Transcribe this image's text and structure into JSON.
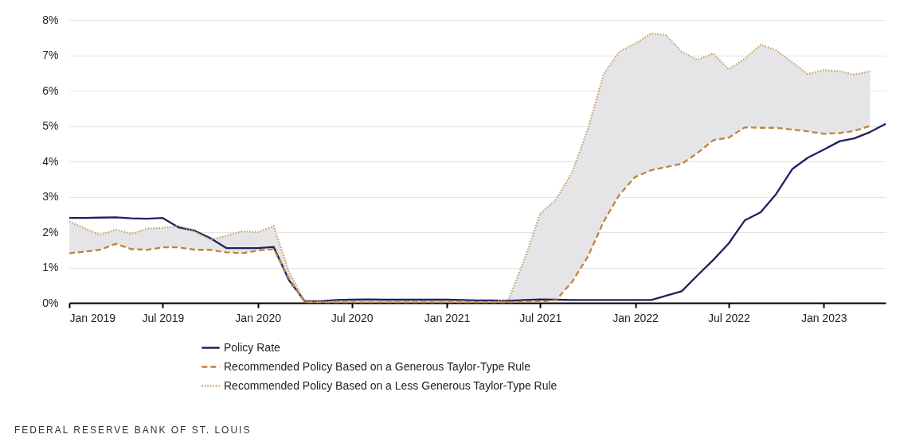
{
  "chart_data": {
    "type": "line",
    "x": [
      "2019-01",
      "2019-02",
      "2019-03",
      "2019-04",
      "2019-05",
      "2019-06",
      "2019-07",
      "2019-08",
      "2019-09",
      "2019-10",
      "2019-11",
      "2019-12",
      "2020-01",
      "2020-02",
      "2020-03",
      "2020-04",
      "2020-05",
      "2020-06",
      "2020-07",
      "2020-08",
      "2020-09",
      "2020-10",
      "2020-11",
      "2020-12",
      "2021-01",
      "2021-02",
      "2021-03",
      "2021-04",
      "2021-05",
      "2021-06",
      "2021-07",
      "2021-08",
      "2021-09",
      "2021-10",
      "2021-11",
      "2021-12",
      "2022-01",
      "2022-02",
      "2022-03",
      "2022-04",
      "2022-05",
      "2022-06",
      "2022-07",
      "2022-08",
      "2022-09",
      "2022-10",
      "2022-11",
      "2022-12",
      "2023-01",
      "2023-02",
      "2023-03",
      "2023-04",
      "2023-05"
    ],
    "series": [
      {
        "name": "Policy Rate",
        "color": "#1f2060",
        "line_style": "solid",
        "values": [
          2.4,
          2.4,
          2.41,
          2.42,
          2.39,
          2.38,
          2.4,
          2.13,
          2.04,
          1.83,
          1.55,
          1.55,
          1.55,
          1.58,
          0.65,
          0.05,
          0.05,
          0.08,
          0.09,
          0.1,
          0.09,
          0.09,
          0.09,
          0.09,
          0.09,
          0.08,
          0.07,
          0.07,
          0.06,
          0.08,
          0.1,
          0.09,
          0.08,
          0.08,
          0.08,
          0.08,
          0.08,
          0.08,
          0.2,
          0.33,
          0.77,
          1.21,
          1.68,
          2.33,
          2.56,
          3.08,
          3.78,
          4.1,
          4.33,
          4.57,
          4.65,
          4.83,
          5.06
        ]
      },
      {
        "name": "Recommended Policy Based on a Generous Taylor-Type Rule",
        "color": "#c0843a",
        "line_style": "dashed",
        "values": [
          1.4,
          1.45,
          1.5,
          1.67,
          1.52,
          1.5,
          1.57,
          1.57,
          1.5,
          1.5,
          1.43,
          1.4,
          1.48,
          1.52,
          0.7,
          0.02,
          0.02,
          0.02,
          0.02,
          0.02,
          0.02,
          0.02,
          0.02,
          0.02,
          0.02,
          0.02,
          0.02,
          0.02,
          0.02,
          0.03,
          0.03,
          0.08,
          0.6,
          1.3,
          2.3,
          3.05,
          3.56,
          3.75,
          3.84,
          3.93,
          4.23,
          4.6,
          4.67,
          4.96,
          4.95,
          4.95,
          4.9,
          4.85,
          4.78,
          4.8,
          4.86,
          5.0,
          null
        ]
      },
      {
        "name": "Recommended Policy Based on a Less Generous Taylor-Type Rule",
        "color": "#c9a06a",
        "line_style": "dotted",
        "values": [
          2.3,
          2.1,
          1.92,
          2.07,
          1.95,
          2.1,
          2.12,
          2.18,
          2.02,
          1.78,
          1.9,
          2.02,
          2.0,
          2.17,
          0.9,
          0.03,
          0.03,
          0.03,
          0.03,
          0.03,
          0.03,
          0.03,
          0.03,
          0.03,
          0.03,
          0.03,
          0.03,
          0.03,
          0.1,
          1.25,
          2.52,
          2.93,
          3.7,
          4.9,
          6.47,
          7.1,
          7.33,
          7.62,
          7.57,
          7.1,
          6.87,
          7.05,
          6.6,
          6.9,
          7.3,
          7.14,
          6.8,
          6.47,
          6.58,
          6.55,
          6.45,
          6.55,
          null
        ],
        "lower": [
          1.4,
          1.45,
          1.5,
          1.67,
          1.52,
          1.5,
          1.57,
          1.57,
          1.5,
          1.5,
          1.43,
          1.4,
          1.48,
          1.52,
          0.7,
          0.02,
          0.02,
          0.02,
          0.02,
          0.02,
          0.02,
          0.02,
          0.02,
          0.02,
          0.02,
          0.02,
          0.02,
          0.02,
          0.02,
          0.03,
          0.03,
          0.08,
          0.6,
          1.3,
          2.3,
          3.05,
          3.56,
          3.75,
          3.84,
          3.93,
          4.23,
          4.6,
          4.67,
          4.96,
          4.95,
          4.95,
          4.9,
          4.85,
          4.78,
          4.8,
          4.86,
          5.0,
          null
        ],
        "upper": [
          2.3,
          2.1,
          1.92,
          2.07,
          1.95,
          2.1,
          2.12,
          2.18,
          2.02,
          1.78,
          1.9,
          2.02,
          2.0,
          2.17,
          0.9,
          0.03,
          0.03,
          0.03,
          0.03,
          0.03,
          0.03,
          0.03,
          0.03,
          0.03,
          0.03,
          0.03,
          0.03,
          0.03,
          0.1,
          1.25,
          2.52,
          2.93,
          3.7,
          4.9,
          6.47,
          7.1,
          7.33,
          7.62,
          7.57,
          7.1,
          6.87,
          7.05,
          6.6,
          6.9,
          7.3,
          7.14,
          6.8,
          6.47,
          6.58,
          6.55,
          6.45,
          6.55,
          null
        ]
      }
    ],
    "xlim": [
      "2019-01",
      "2023-05"
    ],
    "xticks": [
      {
        "value": "2019-01",
        "label": "Jan 2019"
      },
      {
        "value": "2019-07",
        "label": "Jul 2019"
      },
      {
        "value": "2020-01",
        "label": "Jan 2020"
      },
      {
        "value": "2020-07",
        "label": "Jul 2020"
      },
      {
        "value": "2021-01",
        "label": "Jan 2021"
      },
      {
        "value": "2021-07",
        "label": "Jul 2021"
      },
      {
        "value": "2022-01",
        "label": "Jan 2022"
      },
      {
        "value": "2022-07",
        "label": "Jul 2022"
      },
      {
        "value": "2023-01",
        "label": "Jan 2023"
      }
    ],
    "ylim": [
      0,
      8
    ],
    "yticks": [
      {
        "value": 0,
        "label": "0%"
      },
      {
        "value": 1,
        "label": "1%"
      },
      {
        "value": 2,
        "label": "2%"
      },
      {
        "value": 3,
        "label": "3%"
      },
      {
        "value": 4,
        "label": "4%"
      },
      {
        "value": 5,
        "label": "5%"
      },
      {
        "value": 6,
        "label": "6%"
      },
      {
        "value": 7,
        "label": "7%"
      },
      {
        "value": 8,
        "label": "8%"
      }
    ],
    "grid": "y",
    "legend": "bottom",
    "marker": "none",
    "annotations": [
      "FEDERAL RESERVE BANK OF ST. LOUIS"
    ]
  }
}
